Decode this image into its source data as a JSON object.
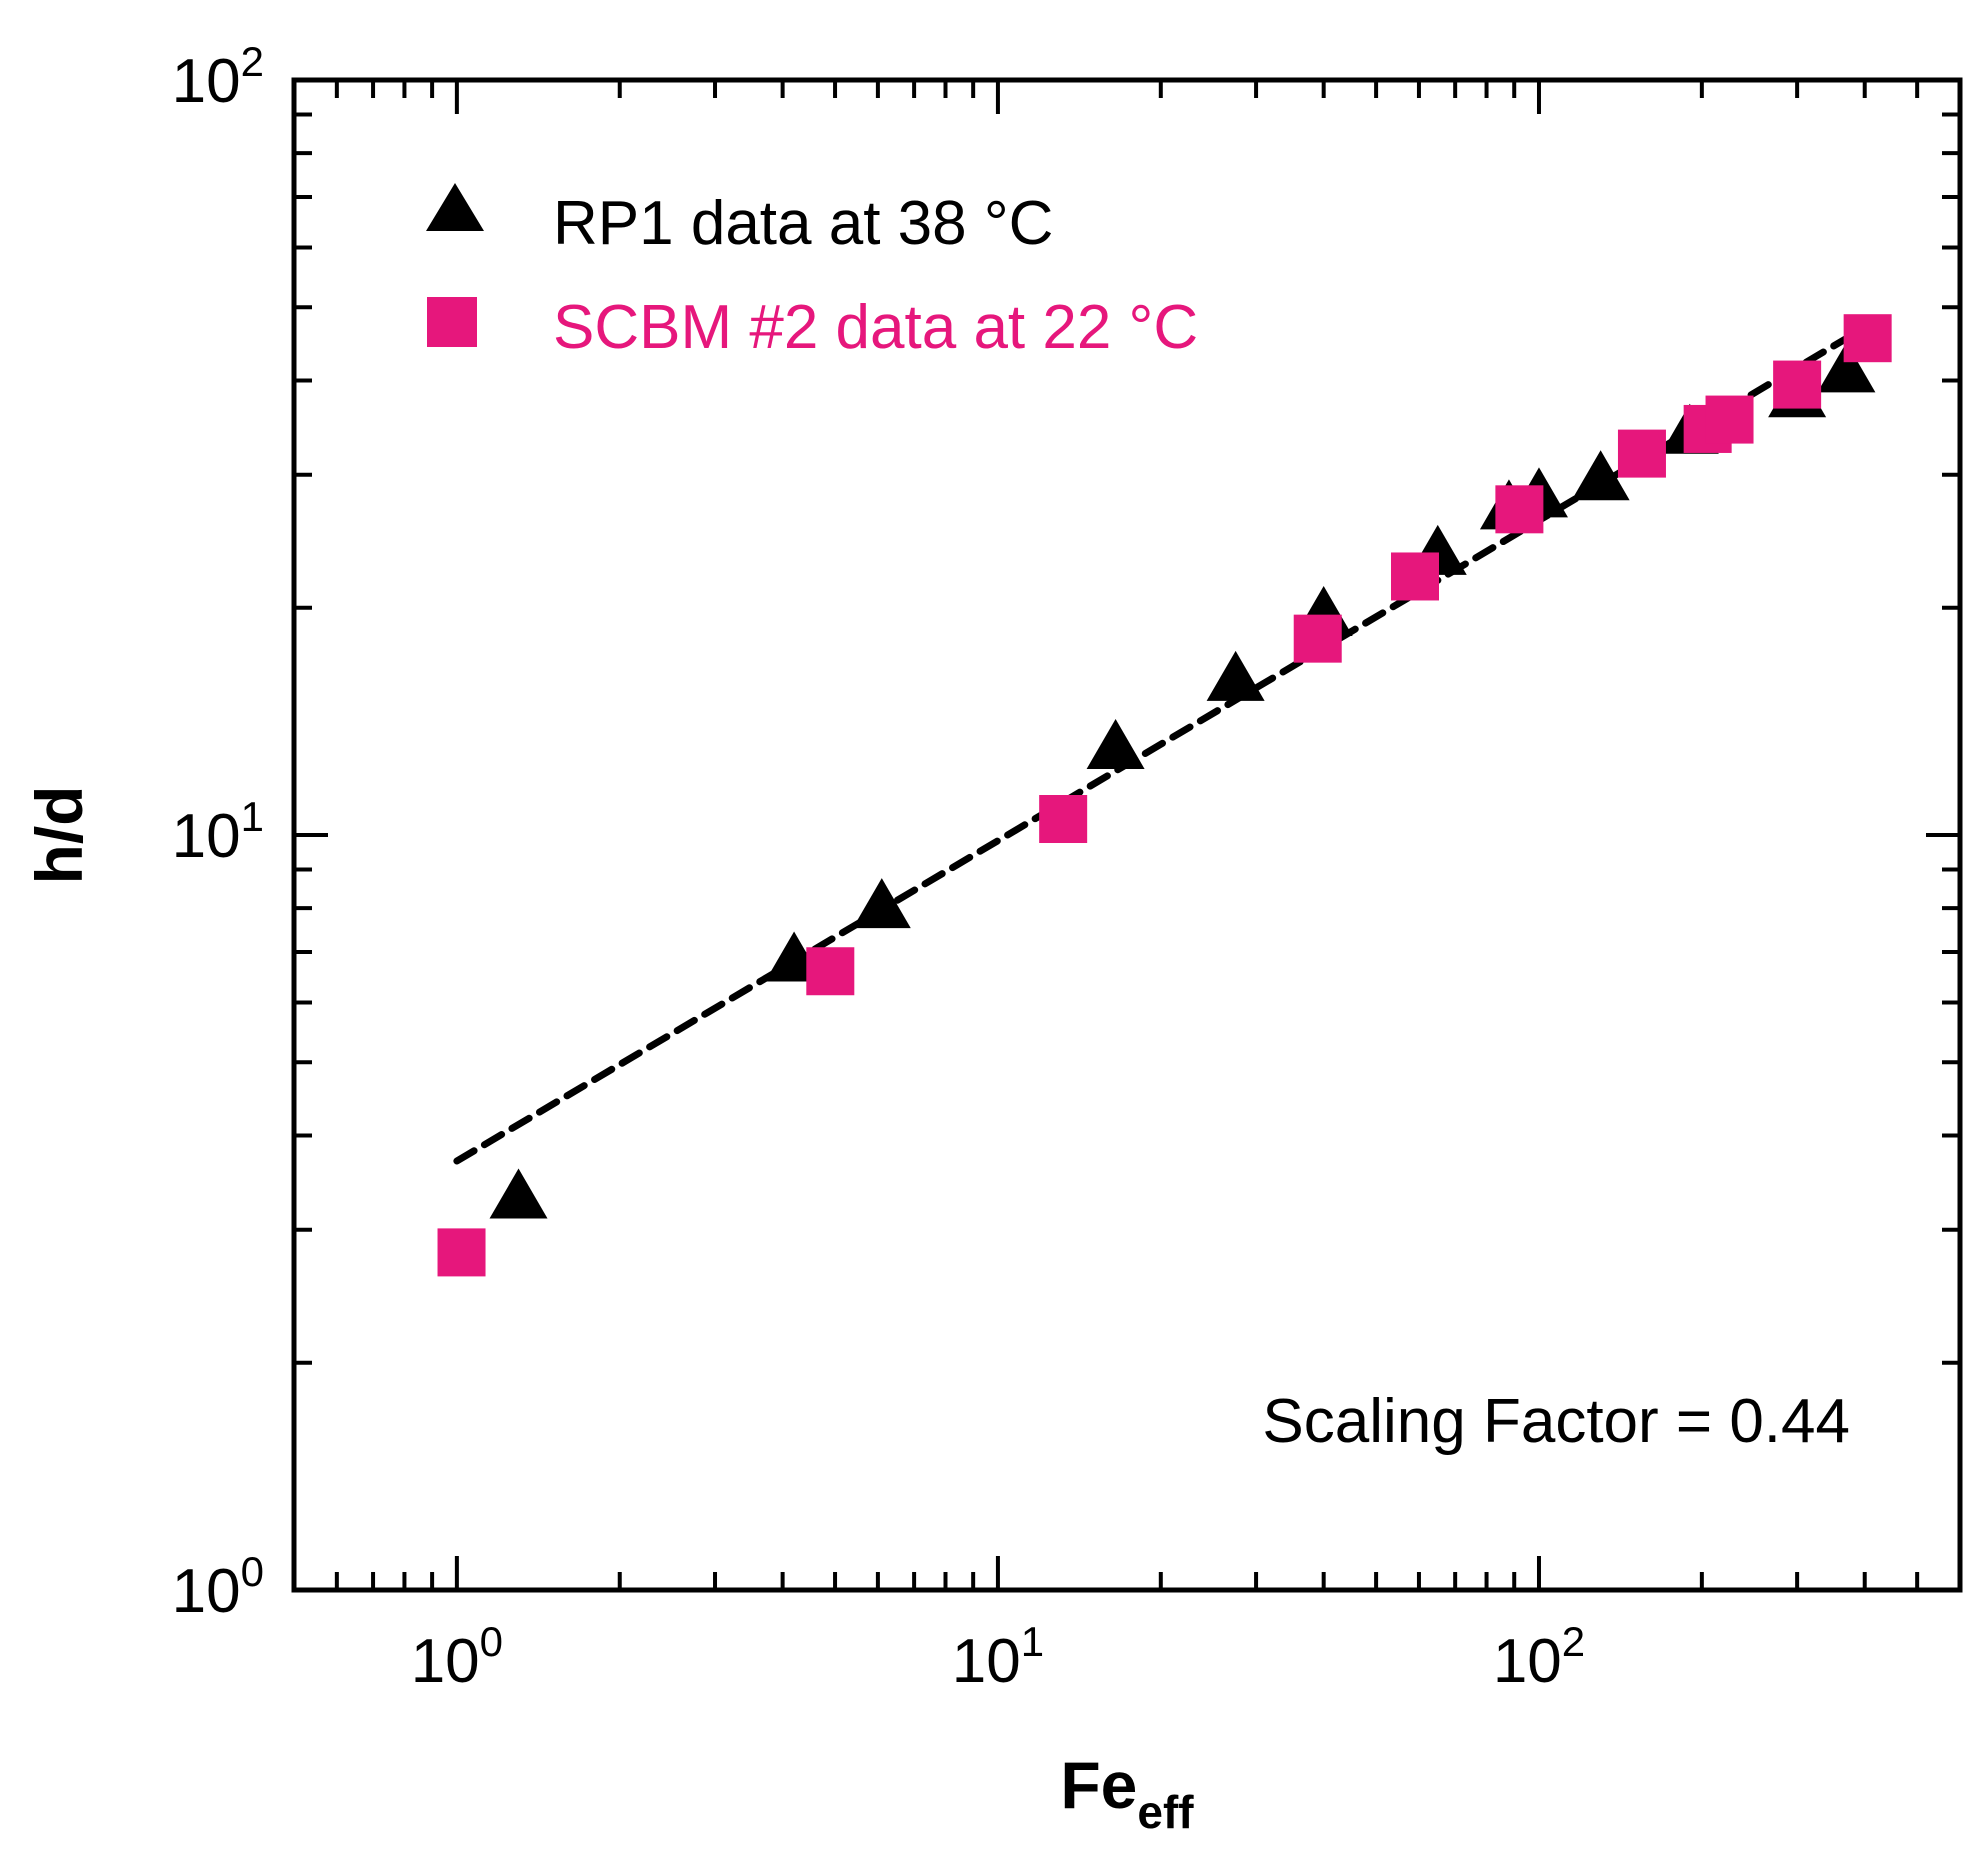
{
  "chart_data": {
    "type": "scatter",
    "title": "",
    "xlabel": {
      "main": "Fe",
      "sub": "eff"
    },
    "ylabel": "h/d",
    "x_scale": "log",
    "y_scale": "log",
    "xlim": [
      0.5,
      600
    ],
    "ylim": [
      1,
      100
    ],
    "x_ticks": [
      {
        "value": 1,
        "base": "10",
        "exp": "0"
      },
      {
        "value": 10,
        "base": "10",
        "exp": "1"
      },
      {
        "value": 100,
        "base": "10",
        "exp": "2"
      }
    ],
    "y_ticks": [
      {
        "value": 1,
        "base": "10",
        "exp": "0"
      },
      {
        "value": 10,
        "base": "10",
        "exp": "1"
      },
      {
        "value": 100,
        "base": "10",
        "exp": "2"
      }
    ],
    "grid": false,
    "legend_position": "top-left",
    "series": [
      {
        "name": "RP1 data at 38 °C",
        "marker": "triangle",
        "color": "#000000",
        "x": [
          1.3,
          4.2,
          6.1,
          16.5,
          27.5,
          40,
          65,
          88,
          100,
          130,
          190,
          300,
          370
        ],
        "y": [
          3.3,
          6.8,
          8.0,
          13.0,
          16.0,
          19.5,
          23.5,
          27.0,
          28.0,
          29.5,
          34.0,
          38.0,
          41.0
        ]
      },
      {
        "name": "SCBM #2 data at 22 °C",
        "marker": "square",
        "color": "#e6177c",
        "x": [
          1.02,
          4.9,
          13.2,
          39,
          59,
          92,
          155,
          205,
          225,
          300,
          405
        ],
        "y": [
          2.8,
          6.6,
          10.5,
          18.2,
          22.0,
          27.0,
          32.0,
          34.5,
          35.5,
          39.5,
          45.5
        ]
      },
      {
        "marker": "dashed-line",
        "color": "#000000",
        "x": [
          1.0,
          400
        ],
        "y": [
          3.7,
          47.0
        ]
      }
    ],
    "annotation": "Scaling Factor = 0.44"
  }
}
